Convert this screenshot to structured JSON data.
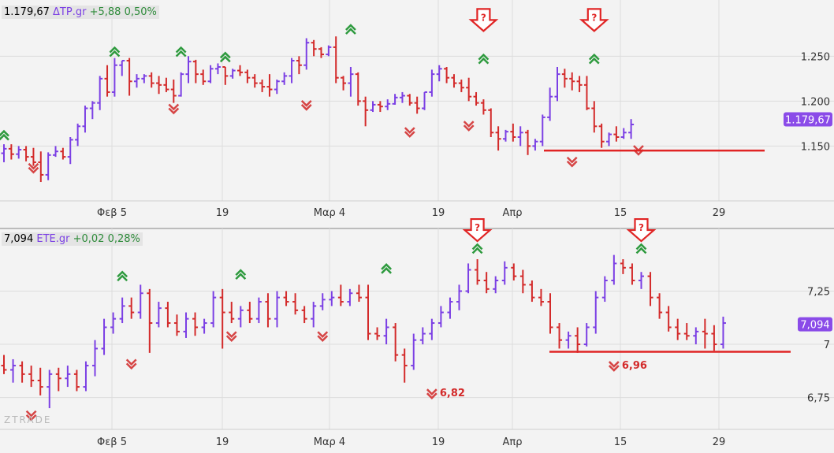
{
  "chart_data": [
    {
      "type": "ohlc",
      "header": {
        "price": "1.179,67",
        "symbol": "ΔΤΡ.gr",
        "change": "+5,88",
        "pct": "0,50%"
      },
      "x_tick_labels": [
        "Φεβ 5",
        "19",
        "Μαρ 4",
        "19",
        "Απρ",
        "15",
        "29"
      ],
      "y_tick_labels": [
        "1.250",
        "1.200",
        "1.150"
      ],
      "y_ticks": [
        1250,
        1200,
        1150
      ],
      "ylim": [
        1096,
        1302
      ],
      "last_price_label": "1.179,67",
      "last_price": 1179.67,
      "support_level": 1145,
      "up_color": "#7b3fe4",
      "down_color": "#d32a2a",
      "signal_up_color": "#2e9a3e",
      "signal_down_color": "#d64545",
      "callout_marker": "?",
      "bars": [
        [
          1142,
          1152,
          1132,
          1147
        ],
        [
          1147,
          1152,
          1135,
          1141
        ],
        [
          1141,
          1150,
          1136,
          1146
        ],
        [
          1146,
          1150,
          1133,
          1138
        ],
        [
          1138,
          1148,
          1128,
          1132
        ],
        [
          1132,
          1144,
          1110,
          1118
        ],
        [
          1118,
          1143,
          1112,
          1140
        ],
        [
          1140,
          1150,
          1138,
          1144
        ],
        [
          1144,
          1148,
          1135,
          1138
        ],
        [
          1138,
          1160,
          1130,
          1157
        ],
        [
          1157,
          1175,
          1150,
          1172
        ],
        [
          1172,
          1195,
          1165,
          1192
        ],
        [
          1192,
          1200,
          1180,
          1198
        ],
        [
          1198,
          1228,
          1190,
          1225
        ],
        [
          1225,
          1240,
          1205,
          1210
        ],
        [
          1210,
          1248,
          1205,
          1240
        ],
        [
          1240,
          1245,
          1228,
          1245
        ],
        [
          1245,
          1248,
          1206,
          1222
        ],
        [
          1222,
          1230,
          1215,
          1225
        ],
        [
          1225,
          1230,
          1220,
          1228
        ],
        [
          1228,
          1232,
          1215,
          1220
        ],
        [
          1220,
          1228,
          1208,
          1218
        ],
        [
          1218,
          1226,
          1210,
          1213
        ],
        [
          1213,
          1224,
          1198,
          1206
        ],
        [
          1206,
          1232,
          1205,
          1230
        ],
        [
          1230,
          1250,
          1220,
          1244
        ],
        [
          1244,
          1246,
          1220,
          1230
        ],
        [
          1230,
          1235,
          1218,
          1222
        ],
        [
          1222,
          1240,
          1220,
          1236
        ],
        [
          1236,
          1242,
          1230,
          1238
        ],
        [
          1238,
          1238,
          1218,
          1228
        ],
        [
          1228,
          1236,
          1225,
          1234
        ],
        [
          1234,
          1240,
          1228,
          1232
        ],
        [
          1232,
          1235,
          1220,
          1226
        ],
        [
          1226,
          1230,
          1215,
          1220
        ],
        [
          1220,
          1224,
          1210,
          1216
        ],
        [
          1216,
          1230,
          1205,
          1213
        ],
        [
          1213,
          1224,
          1208,
          1222
        ],
        [
          1222,
          1232,
          1218,
          1228
        ],
        [
          1228,
          1248,
          1220,
          1245
        ],
        [
          1245,
          1250,
          1230,
          1240
        ],
        [
          1240,
          1270,
          1235,
          1265
        ],
        [
          1265,
          1268,
          1250,
          1258
        ],
        [
          1258,
          1260,
          1248,
          1252
        ],
        [
          1252,
          1262,
          1250,
          1260
        ],
        [
          1260,
          1272,
          1220,
          1226
        ],
        [
          1226,
          1228,
          1212,
          1220
        ],
        [
          1220,
          1238,
          1205,
          1230
        ],
        [
          1230,
          1232,
          1195,
          1200
        ],
        [
          1200,
          1205,
          1172,
          1190
        ],
        [
          1190,
          1200,
          1188,
          1196
        ],
        [
          1196,
          1200,
          1188,
          1194
        ],
        [
          1194,
          1202,
          1190,
          1197
        ],
        [
          1197,
          1208,
          1196,
          1204
        ],
        [
          1204,
          1210,
          1198,
          1206
        ],
        [
          1206,
          1208,
          1195,
          1198
        ],
        [
          1198,
          1205,
          1186,
          1192
        ],
        [
          1192,
          1210,
          1190,
          1210
        ],
        [
          1210,
          1235,
          1205,
          1230
        ],
        [
          1230,
          1240,
          1222,
          1236
        ],
        [
          1236,
          1238,
          1220,
          1226
        ],
        [
          1226,
          1230,
          1215,
          1220
        ],
        [
          1220,
          1224,
          1210,
          1215
        ],
        [
          1215,
          1226,
          1200,
          1205
        ],
        [
          1205,
          1210,
          1195,
          1198
        ],
        [
          1198,
          1202,
          1185,
          1190
        ],
        [
          1190,
          1192,
          1160,
          1165
        ],
        [
          1165,
          1172,
          1145,
          1158
        ],
        [
          1158,
          1168,
          1155,
          1166
        ],
        [
          1166,
          1175,
          1155,
          1160
        ],
        [
          1160,
          1172,
          1150,
          1165
        ],
        [
          1165,
          1168,
          1140,
          1150
        ],
        [
          1150,
          1158,
          1145,
          1155
        ],
        [
          1155,
          1185,
          1150,
          1182
        ],
        [
          1182,
          1215,
          1178,
          1205
        ],
        [
          1205,
          1238,
          1200,
          1230
        ],
        [
          1230,
          1236,
          1215,
          1225
        ],
        [
          1225,
          1232,
          1212,
          1222
        ],
        [
          1222,
          1228,
          1210,
          1218
        ],
        [
          1218,
          1228,
          1190,
          1192
        ],
        [
          1192,
          1200,
          1165,
          1172
        ],
        [
          1172,
          1175,
          1148,
          1155
        ],
        [
          1155,
          1165,
          1150,
          1163
        ],
        [
          1163,
          1172,
          1155,
          1160
        ],
        [
          1160,
          1170,
          1158,
          1165
        ],
        [
          1165,
          1180,
          1158,
          1174
        ]
      ],
      "signals": [
        {
          "i": 0,
          "dir": "up",
          "price": 1163
        },
        {
          "i": 4,
          "dir": "down",
          "price": 1126
        },
        {
          "i": 15,
          "dir": "up",
          "price": 1256
        },
        {
          "i": 24,
          "dir": "up",
          "price": 1256
        },
        {
          "i": 23,
          "dir": "down",
          "price": 1192
        },
        {
          "i": 30,
          "dir": "up",
          "price": 1250
        },
        {
          "i": 41,
          "dir": "down",
          "price": 1196
        },
        {
          "i": 47,
          "dir": "up",
          "price": 1281
        },
        {
          "i": 55,
          "dir": "down",
          "price": 1166
        },
        {
          "i": 63,
          "dir": "down",
          "price": 1173
        },
        {
          "i": 65,
          "dir": "up",
          "price": 1248
        },
        {
          "i": 77,
          "dir": "down",
          "price": 1133
        },
        {
          "i": 80,
          "dir": "up",
          "price": 1248
        },
        {
          "i": 86,
          "dir": "down",
          "price": 1146
        }
      ],
      "callouts": [
        {
          "i": 65,
          "price": 1278
        },
        {
          "i": 80,
          "price": 1278
        }
      ],
      "level_labels": []
    },
    {
      "type": "ohlc",
      "header": {
        "price": "7,094",
        "symbol": "ETE.gr",
        "change": "+0,02",
        "pct": "0,28%"
      },
      "x_tick_labels": [
        "Φεβ 5",
        "19",
        "Μαρ 4",
        "19",
        "Απρ",
        "15",
        "29"
      ],
      "y_tick_labels": [
        "7,25",
        "7",
        "6,75"
      ],
      "y_ticks": [
        7.25,
        7.0,
        6.75
      ],
      "ylim": [
        6.63,
        7.5
      ],
      "last_price_label": "7,094",
      "last_price": 7.094,
      "support_level": 6.965,
      "up_color": "#7b3fe4",
      "down_color": "#d32a2a",
      "signal_up_color": "#2e9a3e",
      "signal_down_color": "#d64545",
      "callout_marker": "?",
      "bars": [
        [
          6.9,
          6.95,
          6.86,
          6.88
        ],
        [
          6.88,
          6.93,
          6.82,
          6.9
        ],
        [
          6.9,
          6.92,
          6.82,
          6.86
        ],
        [
          6.86,
          6.9,
          6.8,
          6.83
        ],
        [
          6.83,
          6.89,
          6.76,
          6.8
        ],
        [
          6.8,
          6.88,
          6.7,
          6.86
        ],
        [
          6.86,
          6.89,
          6.78,
          6.84
        ],
        [
          6.84,
          6.9,
          6.8,
          6.86
        ],
        [
          6.86,
          6.88,
          6.78,
          6.8
        ],
        [
          6.8,
          6.92,
          6.78,
          6.9
        ],
        [
          6.9,
          7.02,
          6.85,
          6.98
        ],
        [
          6.98,
          7.12,
          6.95,
          7.08
        ],
        [
          7.08,
          7.15,
          7.05,
          7.12
        ],
        [
          7.12,
          7.22,
          7.1,
          7.18
        ],
        [
          7.18,
          7.22,
          7.12,
          7.15
        ],
        [
          7.15,
          7.28,
          7.12,
          7.24
        ],
        [
          7.24,
          7.26,
          6.96,
          7.1
        ],
        [
          7.1,
          7.2,
          7.08,
          7.17
        ],
        [
          7.17,
          7.2,
          7.08,
          7.1
        ],
        [
          7.1,
          7.14,
          7.04,
          7.06
        ],
        [
          7.06,
          7.15,
          7.03,
          7.12
        ],
        [
          7.12,
          7.15,
          7.04,
          7.08
        ],
        [
          7.08,
          7.12,
          7.05,
          7.1
        ],
        [
          7.1,
          7.25,
          7.08,
          7.22
        ],
        [
          7.22,
          7.26,
          6.98,
          7.15
        ],
        [
          7.15,
          7.2,
          7.1,
          7.12
        ],
        [
          7.12,
          7.18,
          7.08,
          7.16
        ],
        [
          7.16,
          7.2,
          7.1,
          7.12
        ],
        [
          7.12,
          7.22,
          7.1,
          7.2
        ],
        [
          7.2,
          7.24,
          7.08,
          7.12
        ],
        [
          7.12,
          7.25,
          7.08,
          7.22
        ],
        [
          7.22,
          7.25,
          7.18,
          7.2
        ],
        [
          7.2,
          7.24,
          7.14,
          7.16
        ],
        [
          7.16,
          7.18,
          7.1,
          7.12
        ],
        [
          7.12,
          7.2,
          7.08,
          7.18
        ],
        [
          7.18,
          7.24,
          7.16,
          7.21
        ],
        [
          7.21,
          7.25,
          7.18,
          7.22
        ],
        [
          7.22,
          7.28,
          7.18,
          7.2
        ],
        [
          7.2,
          7.26,
          7.18,
          7.24
        ],
        [
          7.24,
          7.28,
          7.2,
          7.22
        ],
        [
          7.22,
          7.28,
          7.02,
          7.05
        ],
        [
          7.05,
          7.08,
          7.02,
          7.04
        ],
        [
          7.04,
          7.12,
          7.0,
          7.08
        ],
        [
          7.08,
          7.1,
          6.92,
          6.95
        ],
        [
          6.95,
          6.98,
          6.82,
          6.9
        ],
        [
          6.9,
          7.05,
          6.88,
          7.02
        ],
        [
          7.02,
          7.08,
          7.0,
          7.05
        ],
        [
          7.05,
          7.12,
          7.02,
          7.1
        ],
        [
          7.1,
          7.18,
          7.08,
          7.15
        ],
        [
          7.15,
          7.22,
          7.12,
          7.2
        ],
        [
          7.2,
          7.28,
          7.16,
          7.25
        ],
        [
          7.25,
          7.38,
          7.24,
          7.35
        ],
        [
          7.35,
          7.4,
          7.28,
          7.3
        ],
        [
          7.3,
          7.34,
          7.24,
          7.26
        ],
        [
          7.26,
          7.32,
          7.24,
          7.3
        ],
        [
          7.3,
          7.39,
          7.28,
          7.36
        ],
        [
          7.36,
          7.38,
          7.3,
          7.32
        ],
        [
          7.32,
          7.35,
          7.24,
          7.28
        ],
        [
          7.28,
          7.3,
          7.2,
          7.22
        ],
        [
          7.22,
          7.26,
          7.18,
          7.2
        ],
        [
          7.2,
          7.24,
          7.05,
          7.08
        ],
        [
          7.08,
          7.1,
          6.98,
          7.02
        ],
        [
          7.02,
          7.06,
          6.98,
          7.04
        ],
        [
          7.04,
          7.08,
          6.96,
          7.0
        ],
        [
          7.0,
          7.1,
          6.99,
          7.08
        ],
        [
          7.08,
          7.25,
          7.05,
          7.22
        ],
        [
          7.22,
          7.32,
          7.2,
          7.3
        ],
        [
          7.3,
          7.42,
          7.28,
          7.38
        ],
        [
          7.38,
          7.4,
          7.33,
          7.36
        ],
        [
          7.36,
          7.38,
          7.28,
          7.3
        ],
        [
          7.3,
          7.34,
          7.26,
          7.32
        ],
        [
          7.32,
          7.34,
          7.18,
          7.22
        ],
        [
          7.22,
          7.24,
          7.12,
          7.15
        ],
        [
          7.15,
          7.18,
          7.06,
          7.08
        ],
        [
          7.08,
          7.12,
          7.02,
          7.05
        ],
        [
          7.05,
          7.1,
          7.02,
          7.04
        ],
        [
          7.04,
          7.08,
          7.0,
          7.06
        ],
        [
          7.06,
          7.12,
          6.98,
          7.05
        ],
        [
          7.05,
          7.09,
          6.97,
          7.0
        ],
        [
          7.0,
          7.13,
          6.98,
          7.1
        ]
      ],
      "signals": [
        {
          "i": 3,
          "dir": "down",
          "price": 6.668
        },
        {
          "i": 13,
          "dir": "up",
          "price": 7.325
        },
        {
          "i": 14,
          "dir": "down",
          "price": 6.91
        },
        {
          "i": 26,
          "dir": "up",
          "price": 7.333
        },
        {
          "i": 25,
          "dir": "down",
          "price": 7.04
        },
        {
          "i": 35,
          "dir": "down",
          "price": 7.04
        },
        {
          "i": 42,
          "dir": "up",
          "price": 7.36
        },
        {
          "i": 47,
          "dir": "down",
          "price": 6.77
        },
        {
          "i": 52,
          "dir": "up",
          "price": 7.454
        },
        {
          "i": 67,
          "dir": "down",
          "price": 6.9
        },
        {
          "i": 70,
          "dir": "up",
          "price": 7.454
        }
      ],
      "callouts": [
        {
          "i": 52,
          "price": 7.485
        },
        {
          "i": 70,
          "price": 7.485
        }
      ],
      "level_labels": [
        {
          "i": 47,
          "price": 6.77,
          "text": "6,82"
        },
        {
          "i": 67,
          "price": 6.9,
          "text": "6,96"
        }
      ]
    }
  ],
  "watermark": "ZTRADE"
}
